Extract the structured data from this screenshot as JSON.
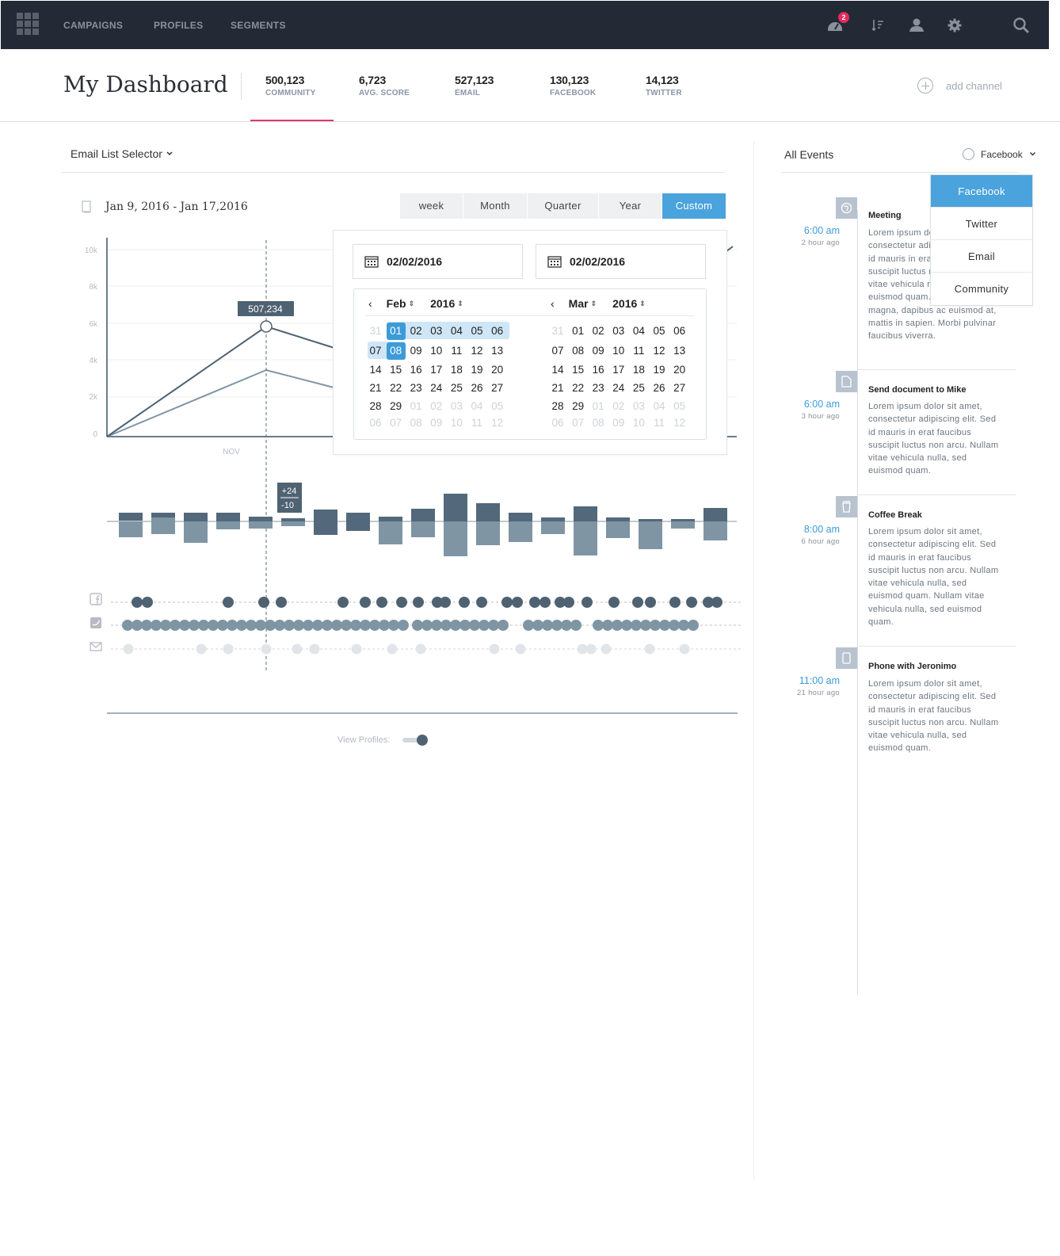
{
  "nav": {
    "links": [
      "CAMPAIGNS",
      "PROFILES",
      "SEGMENTS"
    ],
    "notification_count": "2",
    "icons": [
      "apps-grid-icon",
      "dashboard-gauge-icon",
      "sort-icon",
      "user-icon",
      "gear-icon",
      "search-icon"
    ]
  },
  "header": {
    "title": "My Dashboard",
    "stats": [
      {
        "value": "500,123",
        "label": "COMMUNITY"
      },
      {
        "value": "6,723",
        "label": "AVG. SCORE"
      },
      {
        "value": "527,123",
        "label": "EMAIL"
      },
      {
        "value": "130,123",
        "label": "FACEBOOK"
      },
      {
        "value": "14,123",
        "label": "TWITTER"
      }
    ],
    "active_stat": "COMMUNITY",
    "add_channel": "add channel"
  },
  "left": {
    "selector": "Email List Selector",
    "date_range": "Jan 9, 2016 - Jan 17,2016",
    "tabs": [
      "week",
      "Month",
      "Quarter",
      "Year",
      "Custom"
    ],
    "active_tab": "Custom",
    "view_profiles": "View Profiles:",
    "view_profiles_on": true
  },
  "chart_data": {
    "type": "line",
    "y_ticks": [
      "10k",
      "8k",
      "6k",
      "4k",
      "2k",
      "0"
    ],
    "x_label": "NOV",
    "ylim": [
      0,
      10000
    ],
    "tooltip": "507,234",
    "series": [
      {
        "color": "#4f6272"
      },
      {
        "color": "#7f95a4"
      }
    ],
    "bar_tooltip": {
      "plus": "+24",
      "minus": "-10"
    }
  },
  "picker": {
    "from": "02/02/2016",
    "to": "02/02/2016",
    "left_month": "Feb",
    "left_year": "2016",
    "right_month": "Mar",
    "right_year": "2016",
    "left_days": [
      [
        "31",
        "01",
        "02",
        "03",
        "04",
        "05",
        "06"
      ],
      [
        "07",
        "08",
        "09",
        "10",
        "11",
        "12",
        "13"
      ],
      [
        "14",
        "15",
        "16",
        "17",
        "18",
        "19",
        "20"
      ],
      [
        "21",
        "22",
        "23",
        "24",
        "25",
        "26",
        "27"
      ],
      [
        "28",
        "29",
        "01",
        "02",
        "03",
        "04",
        "05"
      ],
      [
        "06",
        "07",
        "08",
        "09",
        "10",
        "11",
        "12"
      ]
    ],
    "right_days": [
      [
        "31",
        "01",
        "02",
        "03",
        "04",
        "05",
        "06"
      ],
      [
        "07",
        "08",
        "09",
        "10",
        "11",
        "12",
        "13"
      ],
      [
        "14",
        "15",
        "16",
        "17",
        "18",
        "19",
        "20"
      ],
      [
        "21",
        "22",
        "23",
        "24",
        "25",
        "26",
        "27"
      ],
      [
        "28",
        "29",
        "01",
        "02",
        "03",
        "04",
        "05"
      ],
      [
        "06",
        "07",
        "08",
        "09",
        "10",
        "11",
        "12"
      ]
    ]
  },
  "events": {
    "title": "All Events",
    "filter": "Facebook",
    "filter_options": [
      "Facebook",
      "Twitter",
      "Email",
      "Community"
    ],
    "items": [
      {
        "icon": "globe-icon",
        "time": "6:00 am",
        "ago": "2 hour ago",
        "title": "Meeting",
        "body": [
          "Lorem ipsum dolor sit amet,",
          "consectetur adipiscing elit. Sed",
          "id mauris in erat faucibus",
          "suscipit luctus non arcu. Nullam",
          "vitae vehicula nulla, sed",
          "euismod quam. Nullam vitae",
          "magna, dapibus ac euismod at,",
          "mattis in sapien. Morbi pulvinar",
          "faucibus viverra."
        ]
      },
      {
        "icon": "document-icon",
        "time": "6:00 am",
        "ago": "3 hour ago",
        "title": "Send document to Mike",
        "body": [
          "Lorem ipsum dolor sit amet,",
          "consectetur adipiscing elit. Sed",
          "id mauris in erat faucibus",
          "suscipit luctus non arcu. Nullam",
          "vitae vehicula nulla, sed",
          "euismod quam."
        ]
      },
      {
        "icon": "coffee-cup-icon",
        "time": "8:00 am",
        "ago": "6 hour ago",
        "title": "Coffee Break",
        "body": [
          "Lorem ipsum dolor sit amet,",
          "consectetur adipiscing elit. Sed",
          "id mauris in erat faucibus",
          "suscipit luctus non arcu. Nullam",
          "vitae vehicula nulla, sed",
          "euismod quam. Nullam vitae",
          "vehicula nulla, sed euismod",
          "quam."
        ]
      },
      {
        "icon": "phone-icon",
        "time": "11:00 am",
        "ago": "21 hour ago",
        "title": "Phone with Jeronimo",
        "body": [
          "Lorem ipsum dolor sit amet,",
          "consectetur adipiscing elit. Sed",
          "id mauris in erat faucibus",
          "suscipit luctus non arcu. Nullam",
          "vitae vehicula nulla, sed",
          "euismod quam."
        ]
      }
    ]
  }
}
